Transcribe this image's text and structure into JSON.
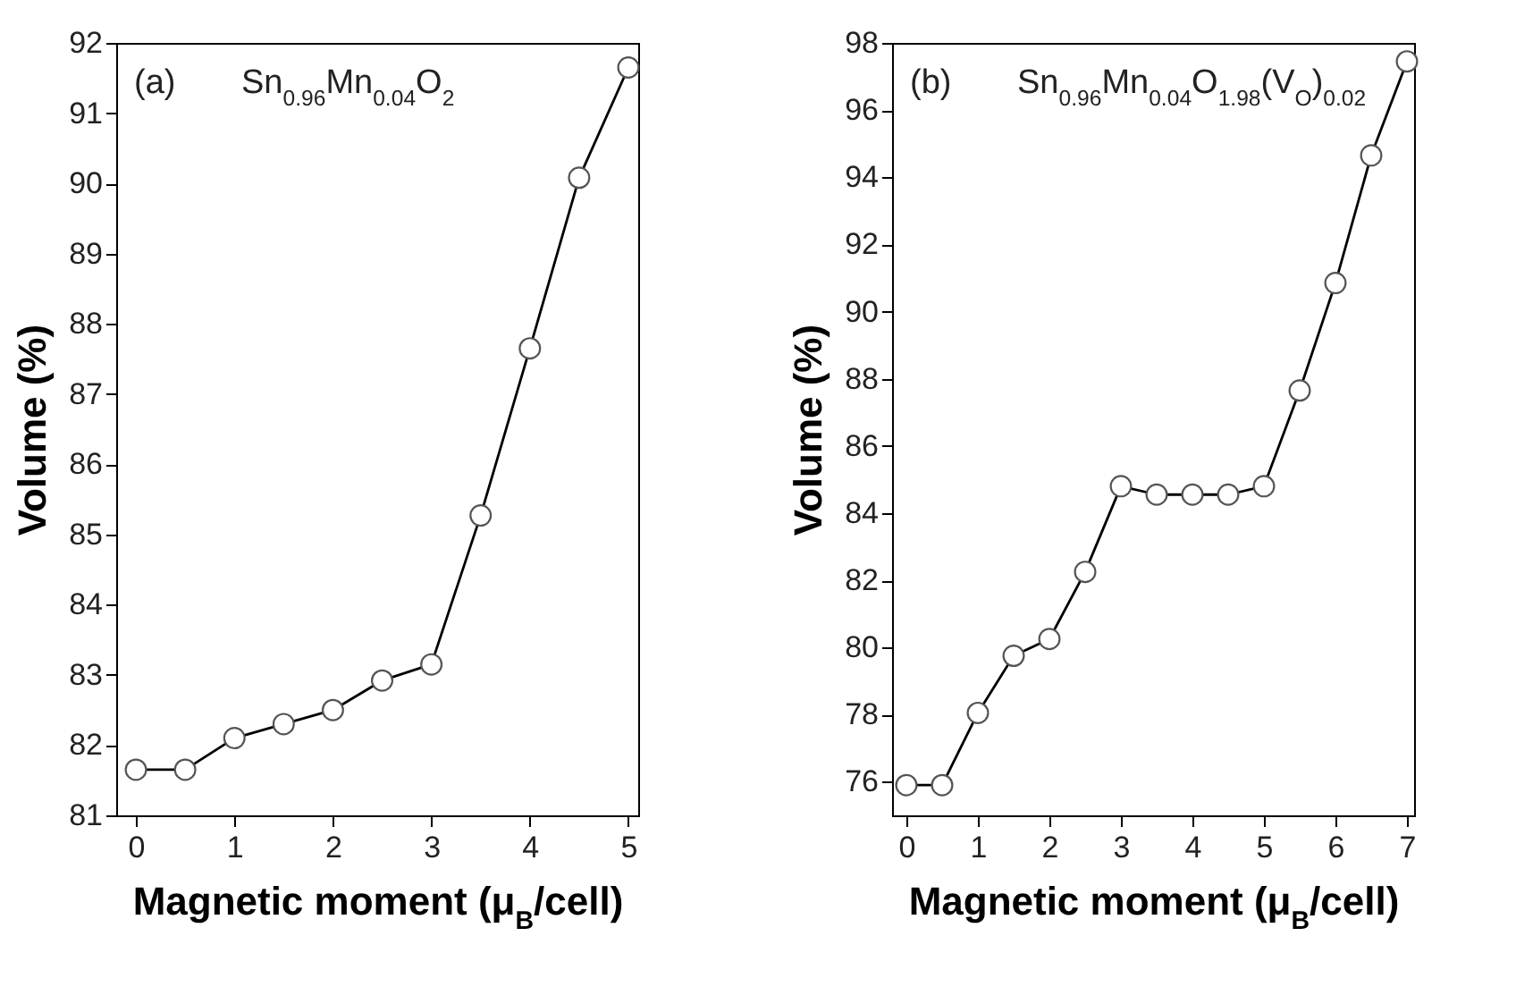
{
  "chart_data": [
    {
      "type": "line",
      "annotations": [
        "(a)",
        "Sn$_{0.96}$Mn$_{0.04}$O$_{2}$"
      ],
      "xlabel": "Magnetic moment (μ$_{B}$/cell)",
      "ylabel": "Volume (%)",
      "x": [
        0,
        0.5,
        1,
        1.5,
        2,
        2.5,
        3,
        3.5,
        4,
        4.5,
        5
      ],
      "series": [
        {
          "color": "#000000",
          "values": [
            81.65,
            81.65,
            82.1,
            82.3,
            82.5,
            82.92,
            83.15,
            85.27,
            87.65,
            90.08,
            91.65
          ]
        }
      ],
      "xlim": [
        -0.2,
        5.1
      ],
      "xticks": [
        0,
        1,
        2,
        3,
        4,
        5
      ],
      "ylim": [
        81,
        92
      ],
      "yticks": [
        81,
        82,
        83,
        84,
        85,
        86,
        87,
        88,
        89,
        90,
        91,
        92
      ],
      "marker": "circle",
      "line_style": "solid"
    },
    {
      "type": "line",
      "annotations": [
        "(b)",
        "Sn$_{0.96}$Mn$_{0.04}$O$_{1.98}$(V$_{O}$)$_{0.02}$"
      ],
      "xlabel": "Magnetic moment (μ$_{B}$/cell)",
      "ylabel": "Volume (%)",
      "x": [
        0,
        0.5,
        1,
        1.5,
        2,
        2.5,
        3,
        3.5,
        4,
        4.5,
        5,
        5.5,
        6,
        6.5,
        7
      ],
      "series": [
        {
          "color": "#000000",
          "values": [
            75.9,
            75.9,
            78.05,
            79.75,
            80.25,
            82.25,
            84.8,
            84.55,
            84.55,
            84.55,
            84.8,
            87.65,
            90.85,
            94.65,
            97.45
          ]
        }
      ],
      "xlim": [
        -0.2,
        7.1
      ],
      "xticks": [
        0,
        1,
        2,
        3,
        4,
        5,
        6,
        7
      ],
      "ylim": [
        75,
        98
      ],
      "yticks": [
        76,
        78,
        80,
        82,
        84,
        86,
        88,
        90,
        92,
        94,
        96,
        98
      ],
      "marker": "circle",
      "line_style": "solid"
    }
  ]
}
